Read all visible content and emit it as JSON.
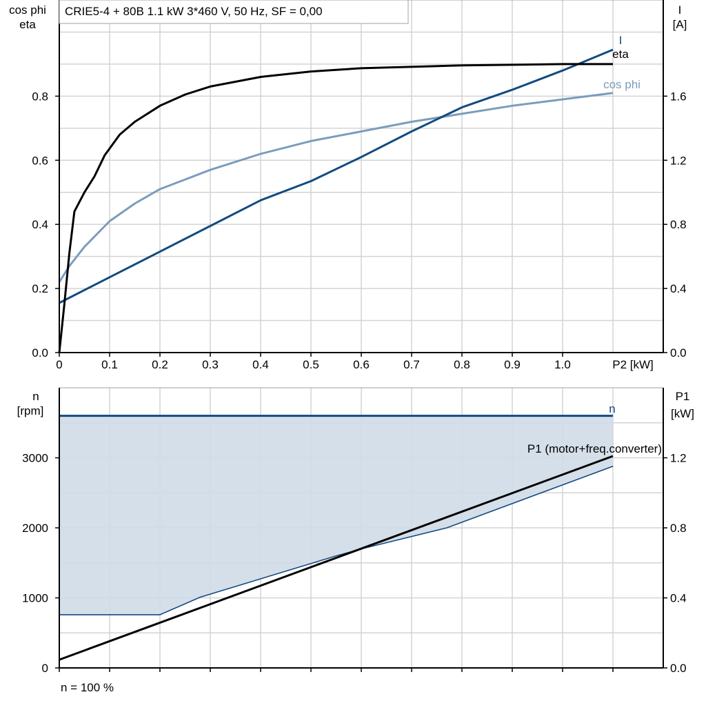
{
  "colors": {
    "I": "#124a80",
    "eta": "#000000",
    "cos_phi": "#7b9cbc",
    "n": "#124a80",
    "n_band_fill": "#d0dce8",
    "P1": "#000000",
    "grid": "#d3d3d3"
  },
  "chart_data": [
    {
      "type": "line",
      "title": "CRIE5-4 + 80B   1.1 kW   3*460 V, 50 Hz, SF = 0,00",
      "xlabel": "P2 [kW]",
      "ylabel_left": [
        "cos phi",
        "eta"
      ],
      "ylabel_right": [
        "I",
        "[A]"
      ],
      "xlim": [
        0,
        1.2
      ],
      "ylim_left": [
        0,
        1.1
      ],
      "ylim_right": [
        0,
        2.2
      ],
      "grid": true,
      "x_ticks": [
        "0",
        "0.1",
        "0.2",
        "0.3",
        "0.4",
        "0.5",
        "0.6",
        "0.7",
        "0.8",
        "0.9",
        "1.0"
      ],
      "y_ticks_left": [
        "0.0",
        "0.2",
        "0.4",
        "0.6",
        "0.8"
      ],
      "y_ticks_right": [
        "0.0",
        "0.4",
        "0.8",
        "1.2",
        "1.6"
      ],
      "series": [
        {
          "name": "eta",
          "axis": "left",
          "x": [
            0,
            0.01,
            0.02,
            0.03,
            0.05,
            0.07,
            0.09,
            0.12,
            0.15,
            0.2,
            0.25,
            0.3,
            0.4,
            0.5,
            0.6,
            0.8,
            1.0,
            1.1
          ],
          "y": [
            0,
            0.15,
            0.31,
            0.44,
            0.5,
            0.55,
            0.615,
            0.68,
            0.72,
            0.77,
            0.805,
            0.83,
            0.86,
            0.877,
            0.887,
            0.896,
            0.9,
            0.9
          ]
        },
        {
          "name": "cos phi",
          "axis": "left",
          "x": [
            0,
            0.02,
            0.05,
            0.1,
            0.15,
            0.2,
            0.3,
            0.4,
            0.5,
            0.6,
            0.7,
            0.8,
            0.9,
            1.0,
            1.1
          ],
          "y": [
            0.22,
            0.27,
            0.33,
            0.41,
            0.465,
            0.51,
            0.57,
            0.62,
            0.66,
            0.69,
            0.72,
            0.745,
            0.77,
            0.79,
            0.81
          ]
        },
        {
          "name": "I",
          "axis": "right",
          "x": [
            0,
            0.1,
            0.2,
            0.3,
            0.4,
            0.5,
            0.6,
            0.7,
            0.8,
            0.9,
            1.0,
            1.1
          ],
          "y": [
            0.31,
            0.47,
            0.63,
            0.79,
            0.95,
            1.07,
            1.22,
            1.38,
            1.53,
            1.64,
            1.76,
            1.89
          ]
        }
      ]
    },
    {
      "type": "line",
      "xlim": [
        0,
        1.2
      ],
      "ylabel_left": [
        "n",
        "[rpm]"
      ],
      "ylabel_right": [
        "P1",
        "[kW]"
      ],
      "ylim_left": [
        0,
        4000
      ],
      "ylim_right": [
        0,
        1.6
      ],
      "grid": true,
      "y_ticks_left": [
        "0",
        "1000",
        "2000",
        "3000"
      ],
      "y_ticks_right": [
        "0.0",
        "0.4",
        "0.8",
        "1.2"
      ],
      "footnote": "n = 100 %",
      "series": [
        {
          "name": "n",
          "axis": "left",
          "x": [
            0,
            1.1
          ],
          "y": [
            3600,
            3600
          ]
        },
        {
          "axis": "left",
          "x": [
            0,
            0.2,
            0.28,
            0.55,
            0.6,
            0.77,
            1.1
          ],
          "y": [
            760,
            760,
            1010,
            1600,
            1700,
            2000,
            2880
          ]
        },
        {
          "name": "P1 (motor+freq.converter)",
          "axis": "right",
          "x": [
            0,
            1.1
          ],
          "y": [
            0.047,
            1.21
          ]
        }
      ]
    }
  ]
}
